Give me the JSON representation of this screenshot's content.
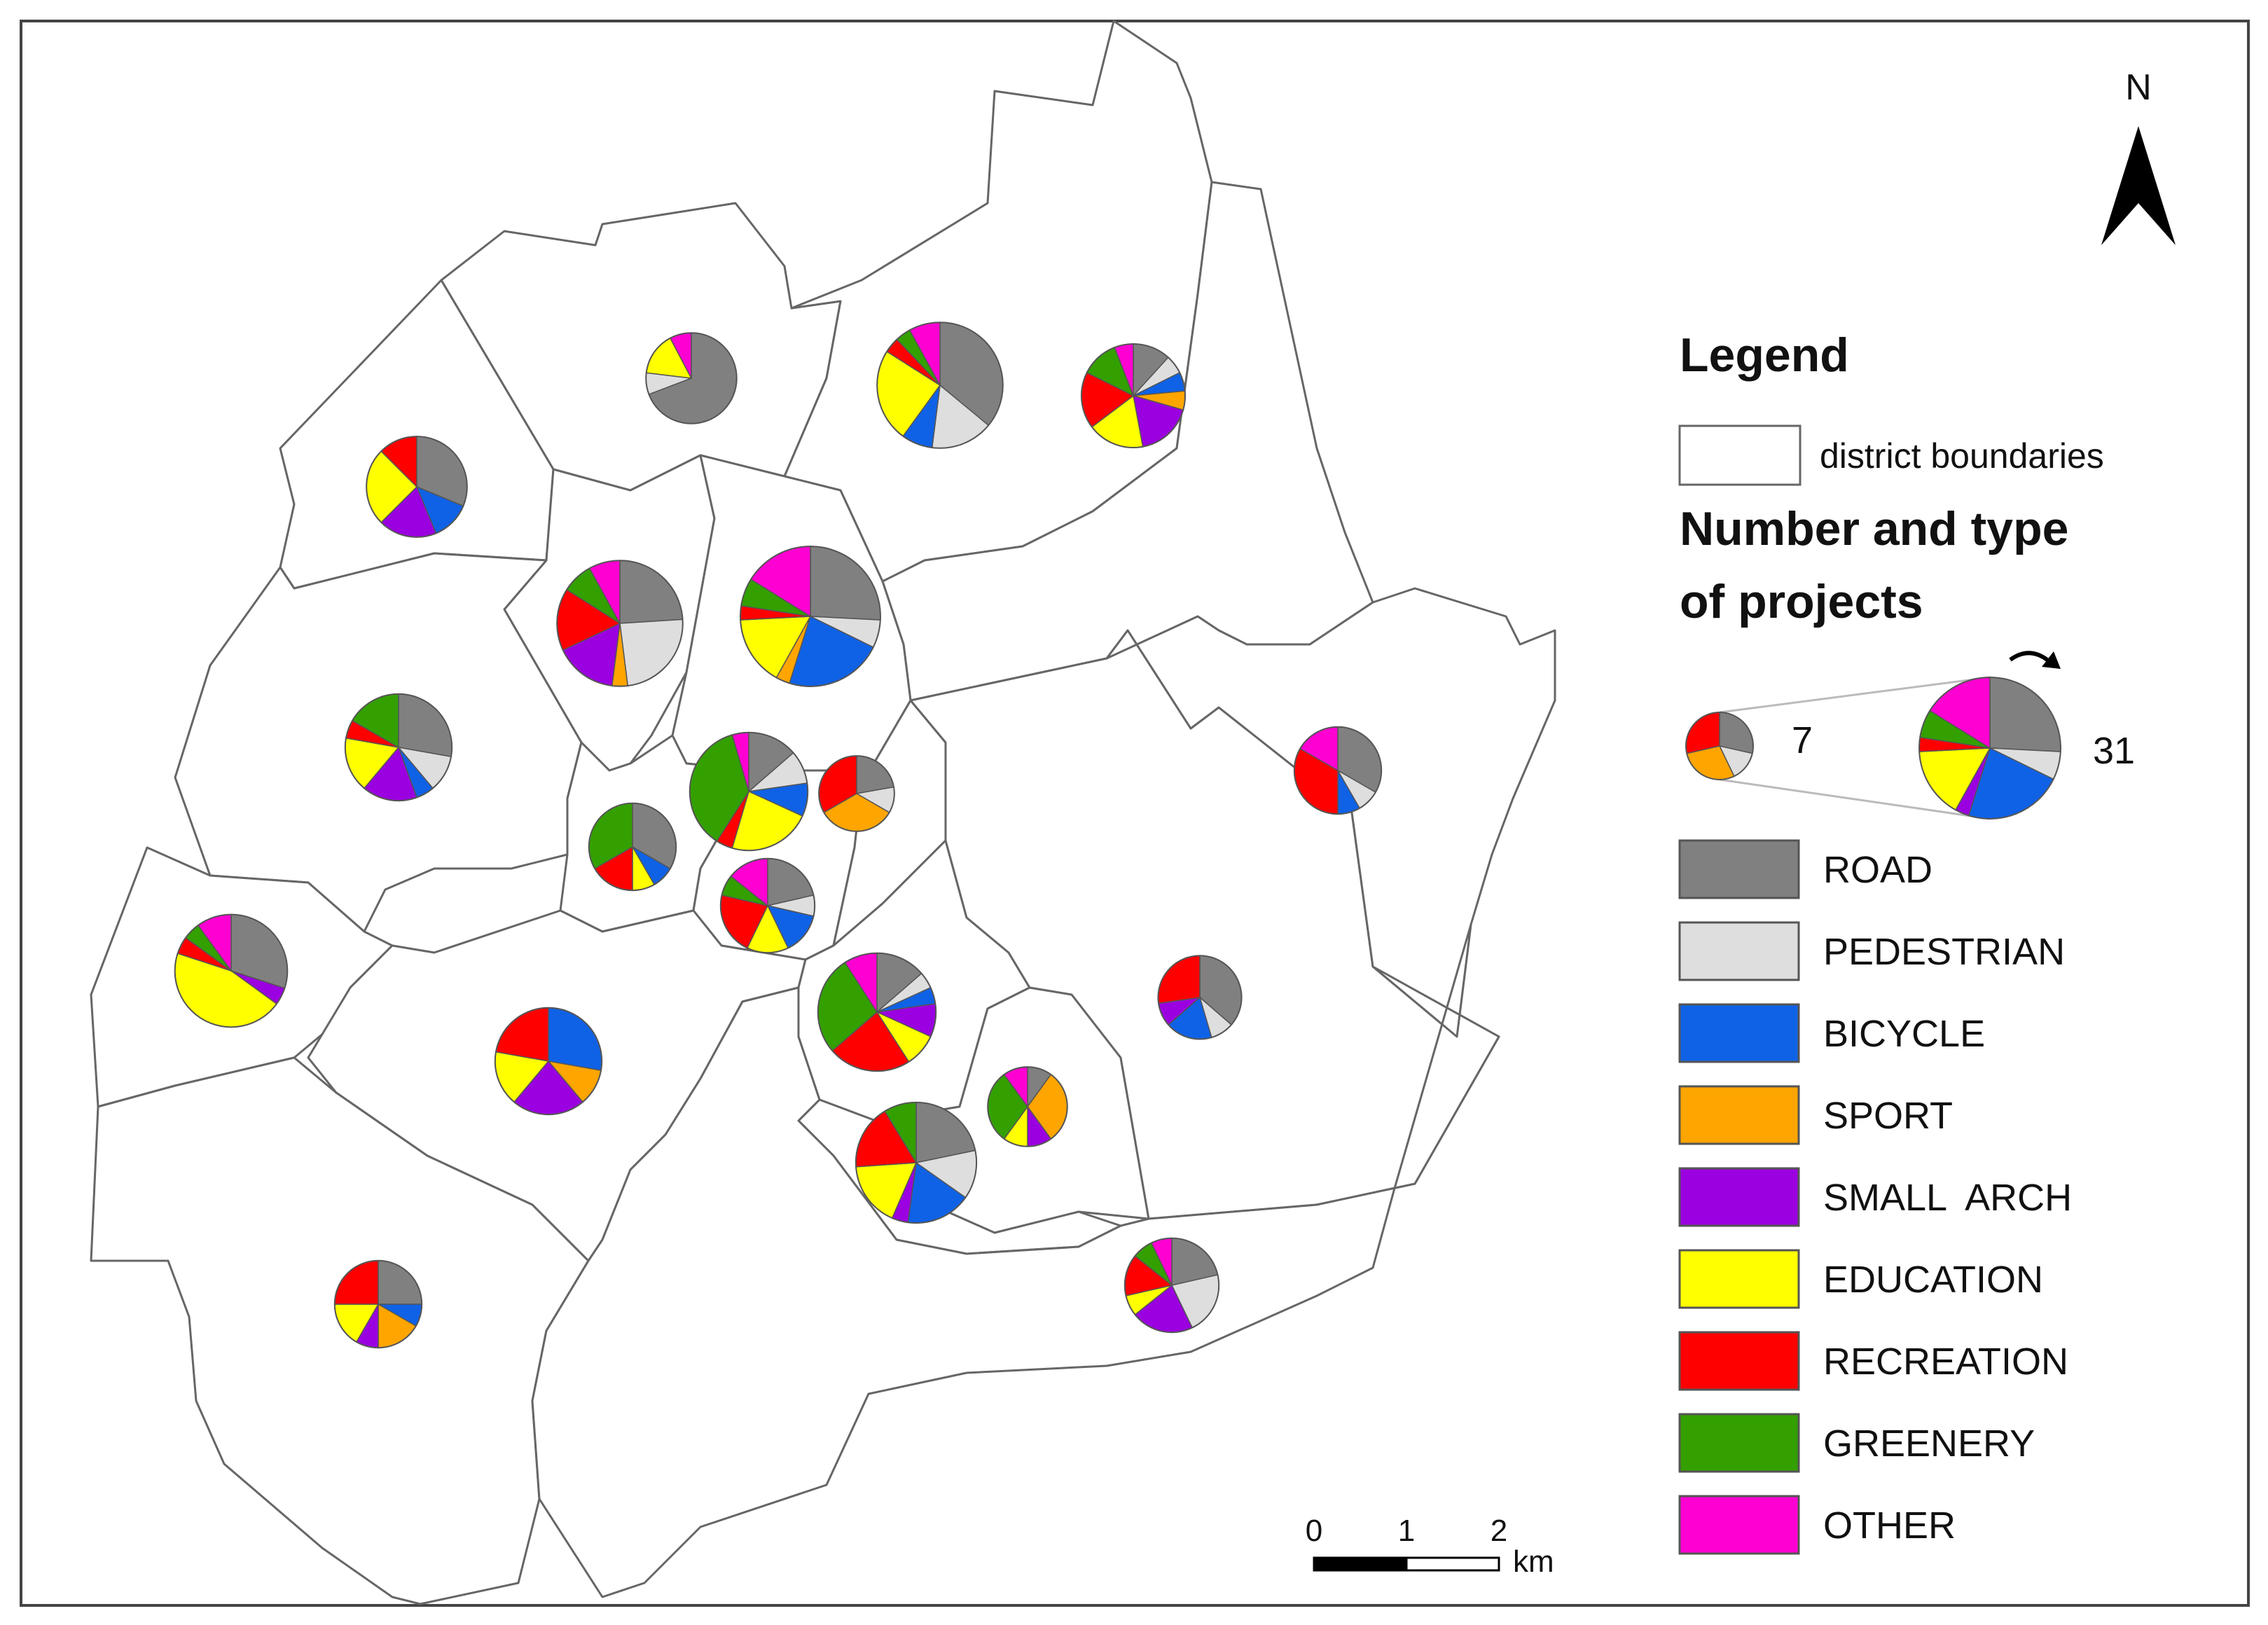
{
  "north_label": "N",
  "legend": {
    "title": "Legend",
    "boundary_label": "district boundaries",
    "size_title_line1": "Number and type",
    "size_title_line2": "of projects",
    "min_count": "7",
    "max_count": "31",
    "categories": [
      {
        "label": "ROAD",
        "color": "#808080"
      },
      {
        "label": "PEDESTRIAN",
        "color": "#dedede"
      },
      {
        "label": "BICYCLE",
        "color": "#0f62e6"
      },
      {
        "label": "SPORT",
        "color": "#ffa500"
      },
      {
        "label": "SMALL  ARCH",
        "color": "#9b00e0"
      },
      {
        "label": "EDUCATION",
        "color": "#ffff00"
      },
      {
        "label": "RECREATION",
        "color": "#ff0000"
      },
      {
        "label": "GREENERY",
        "color": "#33a000"
      },
      {
        "label": "OTHER",
        "color": "#ff00d2"
      }
    ]
  },
  "scale_bar": {
    "ticks": [
      "0",
      "1",
      "2"
    ],
    "unit": "km"
  },
  "chart_data": {
    "type": "pie",
    "description_units": "project counts by category per district",
    "categories": [
      "ROAD",
      "PEDESTRIAN",
      "BICYCLE",
      "SPORT",
      "SMALL  ARCH",
      "EDUCATION",
      "RECREATION",
      "GREENERY",
      "OTHER"
    ],
    "legend_example": {
      "small": {
        "total": 7,
        "values": [
          2,
          1,
          0,
          2,
          0,
          0,
          2,
          0,
          0
        ]
      },
      "large": {
        "total": 31,
        "values": [
          8,
          2,
          7,
          0,
          1,
          5,
          1,
          2,
          5
        ]
      }
    },
    "districts": [
      {
        "values": [
          9,
          1,
          0,
          0,
          0,
          2,
          0,
          0,
          1
        ]
      },
      {
        "values": [
          9,
          4,
          2,
          0,
          0,
          6,
          1,
          1,
          2
        ]
      },
      {
        "values": [
          2,
          1,
          1,
          1,
          3,
          3,
          3,
          2,
          1
        ]
      },
      {
        "values": [
          5,
          0,
          2,
          0,
          3,
          4,
          2,
          0,
          0
        ]
      },
      {
        "values": [
          6,
          6,
          0,
          1,
          4,
          0,
          4,
          2,
          2
        ]
      },
      {
        "values": [
          8,
          2,
          7,
          1,
          0,
          5,
          1,
          2,
          5
        ]
      },
      {
        "values": [
          5,
          2,
          1,
          0,
          3,
          3,
          1,
          3,
          0
        ]
      },
      {
        "values": [
          3,
          2,
          2,
          0,
          0,
          5,
          1,
          8,
          1
        ]
      },
      {
        "values": [
          2,
          1,
          0,
          3,
          0,
          0,
          3,
          0,
          0
        ]
      },
      {
        "values": [
          4,
          0,
          1,
          0,
          0,
          1,
          2,
          4,
          0
        ]
      },
      {
        "values": [
          3,
          1,
          2,
          0,
          0,
          2,
          3,
          1,
          2
        ]
      },
      {
        "values": [
          6,
          0,
          0,
          0,
          1,
          9,
          1,
          1,
          2
        ]
      },
      {
        "values": [
          0,
          0,
          5,
          2,
          4,
          3,
          4,
          0,
          0
        ]
      },
      {
        "values": [
          3,
          1,
          1,
          0,
          2,
          2,
          5,
          6,
          2
        ]
      },
      {
        "values": [
          1,
          0,
          0,
          3,
          1,
          1,
          0,
          3,
          1
        ]
      },
      {
        "values": [
          5,
          3,
          4,
          0,
          1,
          4,
          4,
          2,
          0
        ]
      },
      {
        "values": [
          4,
          1,
          1,
          0,
          0,
          0,
          4,
          0,
          2
        ]
      },
      {
        "values": [
          4,
          1,
          2,
          0,
          1,
          0,
          3,
          0,
          0
        ]
      },
      {
        "values": [
          3,
          0,
          1,
          2,
          1,
          2,
          3,
          0,
          0
        ]
      },
      {
        "values": [
          3,
          3,
          0,
          0,
          3,
          1,
          2,
          1,
          1
        ]
      }
    ]
  }
}
